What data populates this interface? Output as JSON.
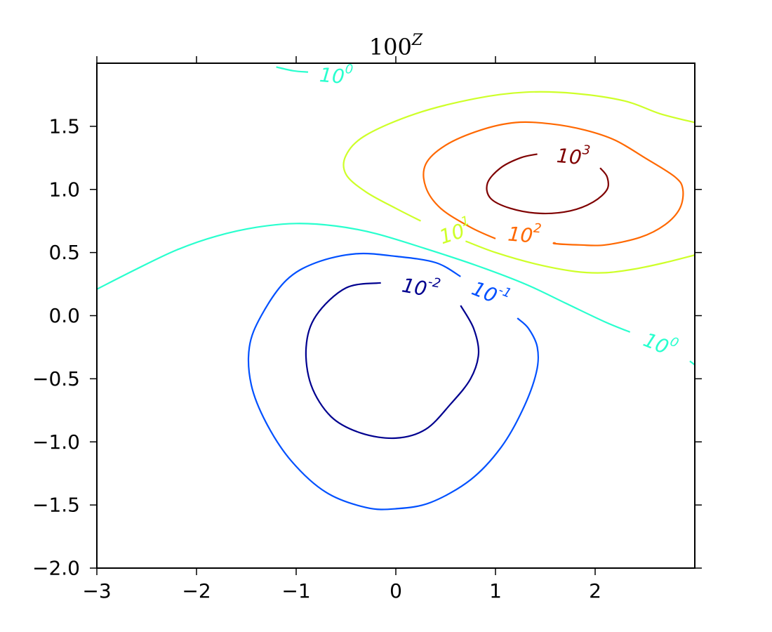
{
  "chart_data": {
    "type": "contour",
    "title": "100",
    "title_superscript": "Z",
    "xlim": [
      -3,
      3
    ],
    "ylim": [
      -2,
      2
    ],
    "x_ticks": [
      -3,
      -2,
      -1,
      0,
      1,
      2
    ],
    "x_tick_labels": [
      "−3",
      "−2",
      "−1",
      "0",
      "1",
      "2"
    ],
    "y_ticks": [
      -2.0,
      -1.5,
      -1.0,
      -0.5,
      0.0,
      0.5,
      1.0,
      1.5
    ],
    "y_tick_labels": [
      "−2.0",
      "−1.5",
      "−1.0",
      "−0.5",
      "0.0",
      "0.5",
      "1.0",
      "1.5"
    ],
    "grid": false,
    "levels": [
      {
        "base": "10",
        "exponent": "-2",
        "color": "#00008f",
        "paths": [
          [
            [
              -0.15,
              0.26
            ],
            [
              -0.5,
              0.22
            ],
            [
              -0.8,
              0.0
            ],
            [
              -0.9,
              -0.25
            ],
            [
              -0.85,
              -0.55
            ],
            [
              -0.65,
              -0.8
            ],
            [
              -0.35,
              -0.93
            ],
            [
              0.0,
              -0.97
            ],
            [
              0.3,
              -0.9
            ],
            [
              0.55,
              -0.7
            ],
            [
              0.75,
              -0.5
            ],
            [
              0.83,
              -0.3
            ],
            [
              0.78,
              -0.1
            ],
            [
              0.65,
              0.08
            ]
          ]
        ],
        "labels": [
          {
            "x": 0.25,
            "y": 0.22,
            "angle": 10
          }
        ]
      },
      {
        "base": "10",
        "exponent": "-1",
        "color": "#0050ff",
        "paths": [
          [
            [
              0.65,
              0.31
            ],
            [
              0.4,
              0.42
            ],
            [
              0.0,
              0.47
            ],
            [
              -0.4,
              0.49
            ],
            [
              -0.8,
              0.42
            ],
            [
              -1.1,
              0.28
            ],
            [
              -1.35,
              0.0
            ],
            [
              -1.47,
              -0.25
            ],
            [
              -1.45,
              -0.55
            ],
            [
              -1.3,
              -0.85
            ],
            [
              -1.05,
              -1.15
            ],
            [
              -0.7,
              -1.4
            ],
            [
              -0.3,
              -1.52
            ],
            [
              0.0,
              -1.53
            ],
            [
              0.35,
              -1.48
            ],
            [
              0.75,
              -1.3
            ],
            [
              1.05,
              -1.05
            ],
            [
              1.27,
              -0.75
            ],
            [
              1.41,
              -0.45
            ],
            [
              1.42,
              -0.25
            ],
            [
              1.33,
              -0.1
            ],
            [
              1.22,
              -0.02
            ]
          ]
        ],
        "labels": [
          {
            "x": 0.95,
            "y": 0.17,
            "angle": 22
          }
        ]
      },
      {
        "base": "10",
        "exponent": "0",
        "color": "#29ffce",
        "paths": [
          [
            [
              -3.0,
              0.21
            ],
            [
              -2.6,
              0.37
            ],
            [
              -2.2,
              0.52
            ],
            [
              -1.8,
              0.63
            ],
            [
              -1.4,
              0.7
            ],
            [
              -1.0,
              0.73
            ],
            [
              -0.6,
              0.71
            ],
            [
              -0.2,
              0.65
            ],
            [
              0.3,
              0.53
            ],
            [
              0.8,
              0.4
            ],
            [
              1.3,
              0.25
            ],
            [
              1.7,
              0.1
            ],
            [
              2.1,
              -0.05
            ],
            [
              2.35,
              -0.13
            ]
          ],
          [
            [
              2.95,
              -0.36
            ],
            [
              3.0,
              -0.39
            ]
          ],
          [
            [
              -1.2,
              1.97
            ],
            [
              -1.03,
              1.94
            ],
            [
              -0.88,
              1.93
            ]
          ]
        ],
        "labels": [
          {
            "x": 2.65,
            "y": -0.23,
            "angle": 22
          },
          {
            "x": -0.6,
            "y": 1.9,
            "angle": 5
          }
        ]
      },
      {
        "base": "10",
        "exponent": "1",
        "color": "#ceff29",
        "paths": [
          [
            [
              0.25,
              0.75
            ],
            [
              0.0,
              0.85
            ],
            [
              -0.3,
              0.98
            ],
            [
              -0.5,
              1.12
            ],
            [
              -0.5,
              1.27
            ],
            [
              -0.3,
              1.43
            ],
            [
              0.2,
              1.6
            ],
            [
              0.8,
              1.72
            ],
            [
              1.3,
              1.77
            ],
            [
              1.8,
              1.76
            ],
            [
              2.3,
              1.7
            ],
            [
              2.65,
              1.6
            ],
            [
              3.0,
              1.53
            ]
          ],
          [
            [
              0.7,
              0.59
            ],
            [
              1.0,
              0.5
            ],
            [
              1.4,
              0.41
            ],
            [
              1.8,
              0.35
            ],
            [
              2.1,
              0.34
            ],
            [
              2.4,
              0.37
            ],
            [
              2.7,
              0.42
            ],
            [
              3.0,
              0.48
            ]
          ]
        ],
        "labels": [
          {
            "x": 0.6,
            "y": 0.66,
            "angle": -18
          }
        ]
      },
      {
        "base": "10",
        "exponent": "2",
        "color": "#ff6800",
        "paths": [
          [
            [
              1.0,
              0.61
            ],
            [
              0.75,
              0.7
            ],
            [
              0.45,
              0.85
            ],
            [
              0.3,
              1.02
            ],
            [
              0.3,
              1.2
            ],
            [
              0.5,
              1.35
            ],
            [
              0.85,
              1.47
            ],
            [
              1.2,
              1.53
            ],
            [
              1.55,
              1.52
            ],
            [
              1.9,
              1.47
            ],
            [
              2.2,
              1.39
            ],
            [
              2.5,
              1.25
            ],
            [
              2.8,
              1.1
            ],
            [
              2.88,
              1.0
            ],
            [
              2.85,
              0.85
            ],
            [
              2.7,
              0.72
            ],
            [
              2.45,
              0.62
            ],
            [
              2.1,
              0.56
            ],
            [
              1.85,
              0.56
            ],
            [
              1.6,
              0.57
            ],
            [
              1.6,
              0.58
            ]
          ]
        ],
        "labels": [
          {
            "x": 1.29,
            "y": 0.64,
            "angle": 5
          }
        ]
      },
      {
        "base": "10",
        "exponent": "3",
        "color": "#7f0000",
        "paths": [
          [
            [
              1.42,
              1.28
            ],
            [
              1.25,
              1.25
            ],
            [
              1.05,
              1.17
            ],
            [
              0.92,
              1.05
            ],
            [
              0.95,
              0.93
            ],
            [
              1.15,
              0.85
            ],
            [
              1.45,
              0.81
            ],
            [
              1.75,
              0.83
            ],
            [
              1.98,
              0.9
            ],
            [
              2.12,
              1.0
            ],
            [
              2.12,
              1.1
            ],
            [
              2.05,
              1.17
            ]
          ]
        ],
        "labels": [
          {
            "x": 1.78,
            "y": 1.26,
            "angle": 5
          }
        ]
      }
    ]
  }
}
